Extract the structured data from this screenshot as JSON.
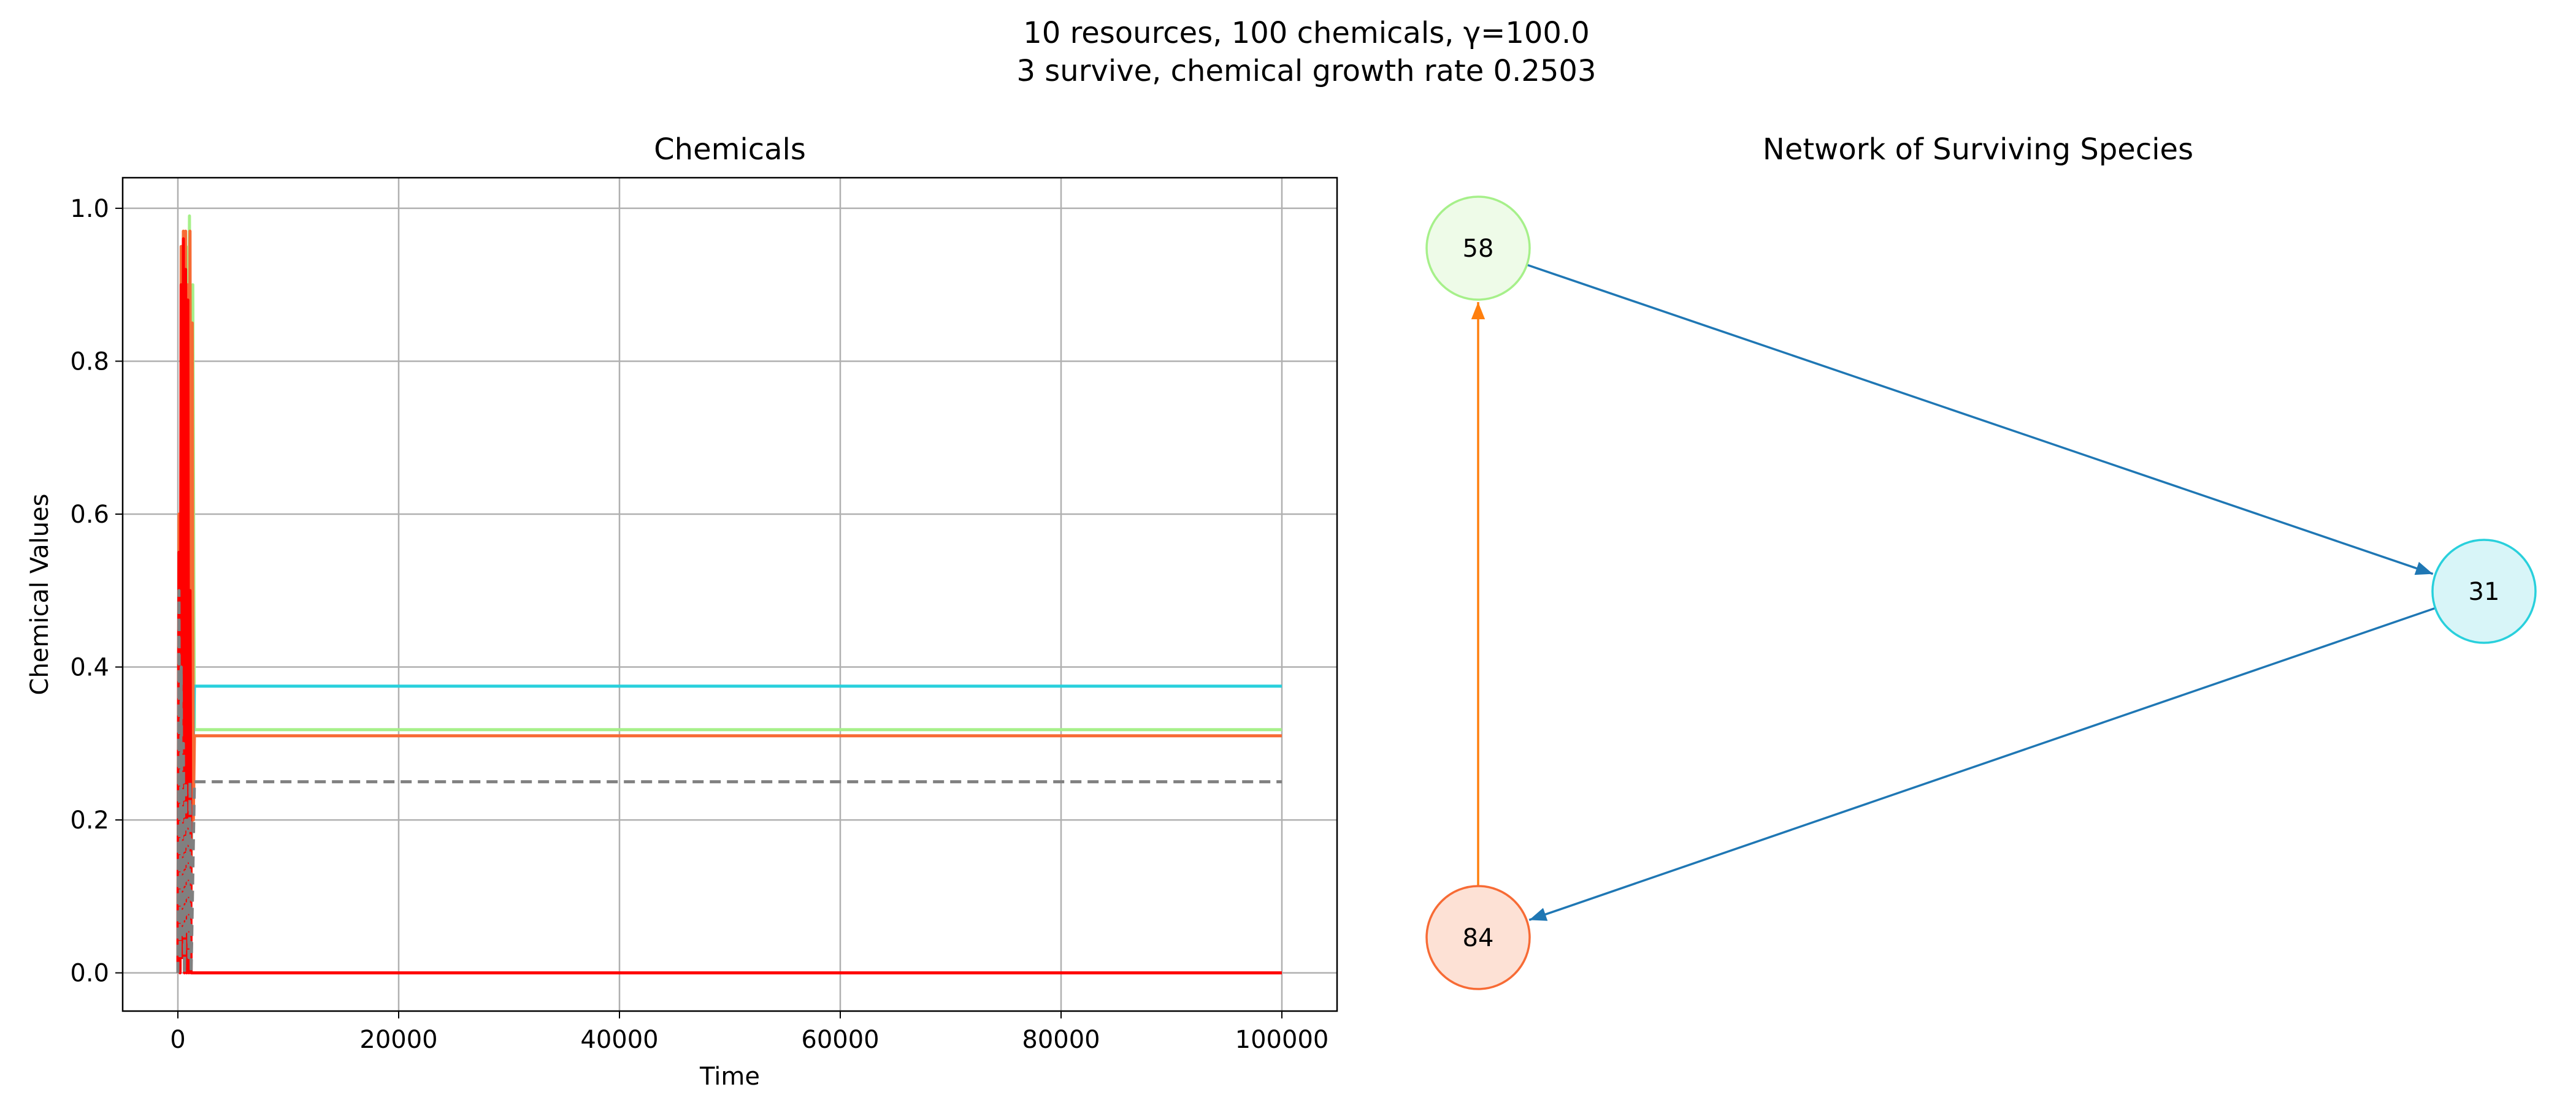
{
  "figure": {
    "suptitle_line1": "10 resources, 100 chemicals, γ=100.0",
    "suptitle_line2": "3 survive, chemical growth rate 0.2503"
  },
  "chart_data": [
    {
      "type": "line",
      "title": "Chemicals",
      "xlabel": "Time",
      "ylabel": "Chemical Values",
      "xlim": [
        -5000,
        105000
      ],
      "ylim": [
        -0.05,
        1.04
      ],
      "xticks": [
        0,
        20000,
        40000,
        60000,
        80000,
        100000
      ],
      "xtick_labels": [
        "0",
        "20000",
        "40000",
        "60000",
        "80000",
        "100000"
      ],
      "yticks": [
        0.0,
        0.2,
        0.4,
        0.6,
        0.8,
        1.0
      ],
      "ytick_labels": [
        "0.0",
        "0.2",
        "0.4",
        "0.6",
        "0.8",
        "1.0"
      ],
      "grid": true,
      "series": [
        {
          "color": "#a6f08a",
          "x": [
            0,
            150,
            300,
            450,
            600,
            750,
            900,
            1050,
            1200,
            1350,
            1500,
            100000
          ],
          "y": [
            0.0,
            0.45,
            0.15,
            0.9,
            0.3,
            0.95,
            0.6,
            0.99,
            0.5,
            0.9,
            0.318,
            0.318
          ]
        },
        {
          "color": "#29d0dc",
          "x": [
            0,
            200,
            400,
            600,
            800,
            1000,
            1200,
            1500,
            100000
          ],
          "y": [
            0.0,
            0.2,
            0.05,
            0.3,
            0.1,
            0.25,
            0.15,
            0.375,
            0.375
          ]
        },
        {
          "color": "#f76b35",
          "x": [
            0,
            100,
            200,
            300,
            400,
            500,
            600,
            700,
            800,
            900,
            1000,
            1100,
            1200,
            1300,
            1400,
            1500,
            100000
          ],
          "y": [
            0.0,
            0.6,
            0.05,
            0.95,
            0.1,
            0.97,
            0.2,
            0.97,
            0.15,
            0.9,
            0.3,
            0.97,
            0.1,
            0.85,
            0.2,
            0.31,
            0.31
          ]
        },
        {
          "color": "#ff0000",
          "x": [
            0,
            100,
            200,
            300,
            400,
            500,
            600,
            700,
            800,
            900,
            1000,
            1100,
            1200,
            1500,
            100000
          ],
          "y": [
            0.0,
            0.55,
            0.0,
            0.9,
            0.02,
            0.96,
            0.0,
            0.92,
            0.0,
            0.88,
            0.0,
            0.5,
            0.0,
            0.0,
            0.0
          ]
        },
        {
          "color": "#808080",
          "dashed": true,
          "x": [
            0,
            100,
            200,
            300,
            400,
            500,
            600,
            700,
            800,
            900,
            1000,
            1100,
            1200,
            1500,
            100000
          ],
          "y": [
            0.0,
            0.5,
            0.02,
            0.4,
            0.05,
            0.3,
            0.0,
            0.25,
            0.05,
            0.2,
            0.02,
            0.25,
            0.0,
            0.25,
            0.25
          ]
        }
      ]
    },
    {
      "type": "network",
      "title": "Network of Surviving Species",
      "nodes": [
        {
          "id": "58",
          "fill": "#eefbe8",
          "stroke": "#a6f08a"
        },
        {
          "id": "31",
          "fill": "#d8f5f8",
          "stroke": "#29d0dc"
        },
        {
          "id": "84",
          "fill": "#fde1d5",
          "stroke": "#f76b35"
        }
      ],
      "edges": [
        {
          "from": "58",
          "to": "31",
          "color": "#1f77b4"
        },
        {
          "from": "31",
          "to": "84",
          "color": "#1f77b4"
        },
        {
          "from": "84",
          "to": "58",
          "color": "#ff7f0e"
        }
      ]
    }
  ]
}
